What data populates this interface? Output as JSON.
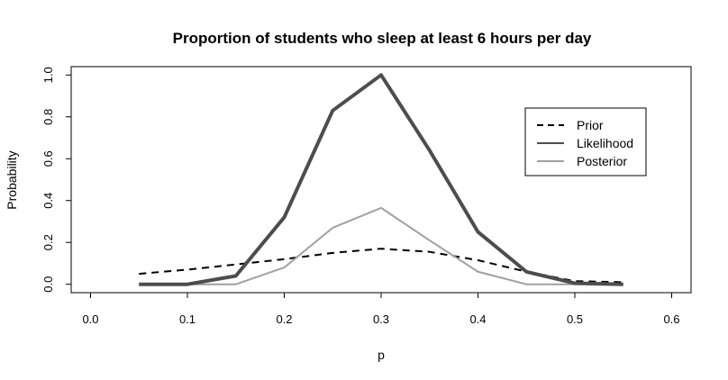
{
  "chart_data": {
    "type": "line",
    "title": "Proportion of students who sleep at least 6 hours per day",
    "xlabel": "p",
    "ylabel": "Probability",
    "xlim": [
      -0.02,
      0.62
    ],
    "ylim": [
      -0.04,
      1.04
    ],
    "xticks": [
      "0.0",
      "0.1",
      "0.2",
      "0.3",
      "0.4",
      "0.5",
      "0.6"
    ],
    "yticks": [
      "0.0",
      "0.2",
      "0.4",
      "0.6",
      "0.8",
      "1.0"
    ],
    "legend_position": "top-right",
    "grid": false,
    "x": [
      0.05,
      0.1,
      0.15,
      0.2,
      0.25,
      0.3,
      0.35,
      0.4,
      0.45,
      0.5,
      0.55
    ],
    "series": [
      {
        "name": "Prior",
        "style": "dashed",
        "color": "#000000",
        "values": [
          0.05,
          0.07,
          0.095,
          0.12,
          0.15,
          0.17,
          0.155,
          0.115,
          0.06,
          0.015,
          0.01
        ]
      },
      {
        "name": "Likelihood",
        "style": "solid-thick",
        "color": "#4d4d4d",
        "values": [
          0.0,
          0.0,
          0.04,
          0.32,
          0.83,
          1.0,
          0.64,
          0.25,
          0.06,
          0.005,
          0.0
        ]
      },
      {
        "name": "Posterior",
        "style": "solid",
        "color": "#a0a0a0",
        "values": [
          0.0,
          0.0,
          0.0,
          0.08,
          0.27,
          0.365,
          0.21,
          0.06,
          0.0,
          0.0,
          0.0
        ]
      }
    ]
  }
}
